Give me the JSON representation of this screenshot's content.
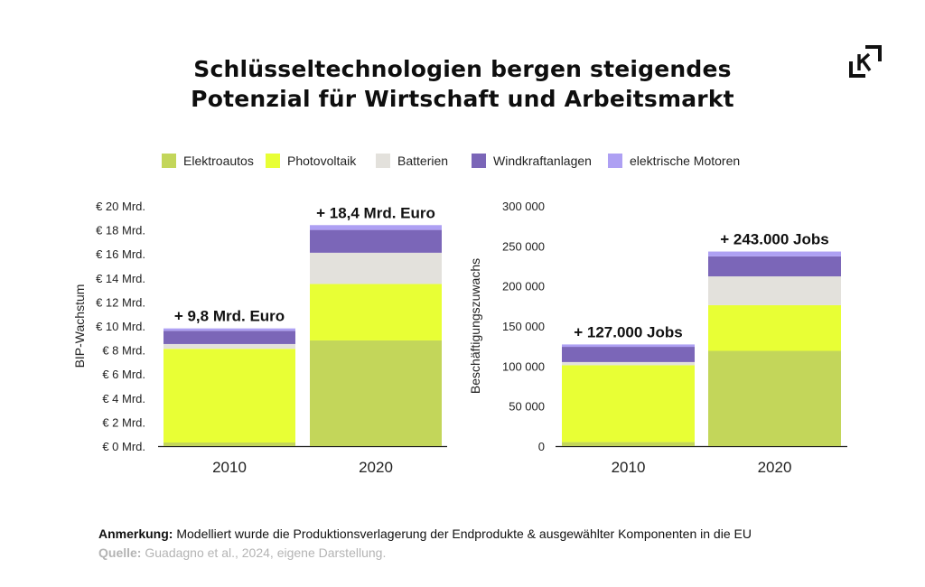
{
  "title_line1": "Schlüsseltechnologien bergen steigendes",
  "title_line2": "Potenzial für Wirtschaft und Arbeitsmarkt",
  "logo_icon": "k-bracket-logo-icon",
  "legend": [
    {
      "name": "Elektroautos",
      "color": "#c3d65a"
    },
    {
      "name": "Photovoltaik",
      "color": "#e8ff35"
    },
    {
      "name": "Batterien",
      "color": "#e3e1dc"
    },
    {
      "name": "Windkraftanlagen",
      "color": "#7b66b8"
    },
    {
      "name": "elektrische Motoren",
      "color": "#aea0f3"
    }
  ],
  "chart_data": [
    {
      "type": "bar",
      "stacked": true,
      "ylabel": "BIP-Wachstum",
      "ylim": [
        0,
        20
      ],
      "yticks": [
        0,
        2,
        4,
        6,
        8,
        10,
        12,
        14,
        16,
        18,
        20
      ],
      "ytick_labels": [
        "€ 0 Mrd.",
        "€ 2 Mrd.",
        "€ 4 Mrd.",
        "€ 6 Mrd.",
        "€ 8 Mrd.",
        "€ 10 Mrd.",
        "€ 12 Mrd.",
        "€ 14 Mrd.",
        "€ 16 Mrd.",
        "€ 18 Mrd.",
        "€ 20 Mrd."
      ],
      "categories": [
        "2010",
        "2020"
      ],
      "totals_labels": [
        "+ 9,8 Mrd. Euro",
        "+ 18,4 Mrd. Euro"
      ],
      "series": [
        {
          "name": "Elektroautos",
          "values": [
            0.3,
            8.8
          ]
        },
        {
          "name": "Photovoltaik",
          "values": [
            7.8,
            4.7
          ]
        },
        {
          "name": "Batterien",
          "values": [
            0.4,
            2.6
          ]
        },
        {
          "name": "Windkraftanlagen",
          "values": [
            1.1,
            1.9
          ]
        },
        {
          "name": "elektrische Motoren",
          "values": [
            0.2,
            0.4
          ]
        }
      ],
      "grid": false
    },
    {
      "type": "bar",
      "stacked": true,
      "ylabel": "Beschäftigungszuwachs",
      "ylim": [
        0,
        300000
      ],
      "yticks": [
        0,
        50000,
        100000,
        150000,
        200000,
        250000,
        300000
      ],
      "ytick_labels": [
        "0",
        "50 000",
        "100 000",
        "150 000",
        "200 000",
        "250 000",
        "300 000"
      ],
      "categories": [
        "2010",
        "2020"
      ],
      "totals_labels": [
        "+ 127.000 Jobs",
        "+ 243.000 Jobs"
      ],
      "series": [
        {
          "name": "Elektroautos",
          "values": [
            5000,
            119000
          ]
        },
        {
          "name": "Photovoltaik",
          "values": [
            96000,
            57000
          ]
        },
        {
          "name": "Batterien",
          "values": [
            4000,
            36000
          ]
        },
        {
          "name": "Windkraftanlagen",
          "values": [
            19000,
            25000
          ]
        },
        {
          "name": "elektrische Motoren",
          "values": [
            3000,
            6000
          ]
        }
      ],
      "grid": false
    }
  ],
  "note_label": "Anmerkung:",
  "note_text": " Modelliert wurde die Produktionsverlagerung der Endprodukte & ausgewählter Komponenten in die EU",
  "source_label": "Quelle:",
  "source_text": " Guadagno et al., 2024, eigene Darstellung."
}
